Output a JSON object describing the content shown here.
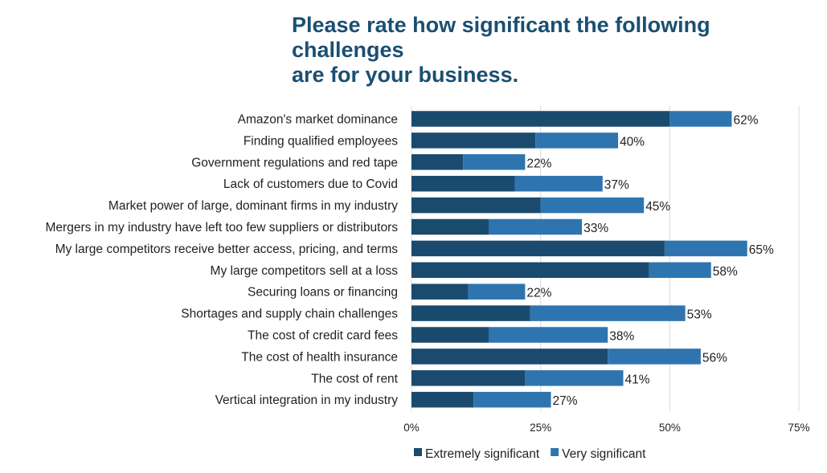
{
  "title_line1": "Please rate how significant the following challenges",
  "title_line2": "are for your business.",
  "chart_data": {
    "type": "bar",
    "orientation": "horizontal",
    "stacked": true,
    "categories": [
      "Amazon's market dominance",
      "Finding qualified employees",
      "Government regulations and red tape",
      "Lack of customers due to Covid",
      "Market power of large, dominant firms in my industry",
      "Mergers in my industry have left too few suppliers or distributors",
      "My large competitors receive better access, pricing, and terms",
      "My large competitors sell at a loss",
      "Securing loans or financing",
      "Shortages and supply chain challenges",
      "The cost of credit card fees",
      "The cost of health insurance",
      "The cost of rent",
      "Vertical integration in my industry"
    ],
    "series": [
      {
        "name": "Extremely significant",
        "color": "#1a4a6e",
        "values": [
          50,
          24,
          10,
          20,
          25,
          15,
          49,
          46,
          11,
          23,
          15,
          38,
          22,
          12
        ]
      },
      {
        "name": "Very significant",
        "color": "#2e75b0",
        "values": [
          12,
          16,
          12,
          17,
          20,
          18,
          16,
          12,
          11,
          30,
          23,
          18,
          19,
          15
        ]
      }
    ],
    "totals": [
      "62%",
      "40%",
      "22%",
      "37%",
      "45%",
      "33%",
      "65%",
      "58%",
      "22%",
      "53%",
      "38%",
      "56%",
      "41%",
      "27%"
    ],
    "xlim": [
      0,
      75
    ],
    "xticks": [
      "0%",
      "25%",
      "50%",
      "75%"
    ],
    "xtick_values": [
      0,
      25,
      50,
      75
    ],
    "legend": [
      "Extremely significant",
      "Very significant"
    ],
    "legend_position": "bottom",
    "grid": true
  }
}
